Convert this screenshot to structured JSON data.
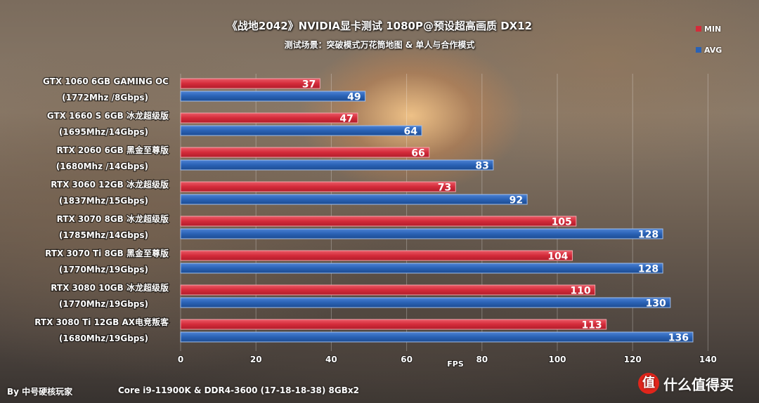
{
  "header": {
    "title": "《战地2042》NVIDIA显卡测试  1080P@预设超高画质  DX12",
    "subtitle": "测试场景：突破模式万花筒地图 & 单人与合作模式"
  },
  "footer": {
    "author": "By 中号硬核玩家",
    "platform": "Core i9-11900K & DDR4-3600  (17-18-18-38) 8GBx2"
  },
  "watermark": {
    "text": "什么值得买",
    "badge": "值"
  },
  "colors": {
    "min": "#d42b3a",
    "avg": "#2a62b5"
  },
  "chart_data": {
    "type": "bar",
    "orientation": "horizontal",
    "title": "《战地2042》NVIDIA显卡测试  1080P@预设超高画质  DX12",
    "subtitle": "测试场景：突破模式万花筒地图 & 单人与合作模式",
    "xlabel": "FPS",
    "ylabel": "",
    "xlim": [
      0,
      140
    ],
    "x_ticks": [
      "0",
      "20",
      "40",
      "60",
      "80",
      "100",
      "120",
      "140"
    ],
    "grid": true,
    "legend_position": "top-right",
    "categories": [
      [
        "GTX 1060 6GB GAMING OC",
        "(1772Mhz /8Gbps)"
      ],
      [
        "GTX 1660 S 6GB 冰龙超级版",
        "(1695Mhz/14Gbps)"
      ],
      [
        "RTX 2060 6GB 黑金至尊版",
        "(1680Mhz /14Gbps)"
      ],
      [
        "RTX 3060 12GB 冰龙超级版",
        "(1837Mhz/15Gbps)"
      ],
      [
        "RTX 3070 8GB 冰龙超级版",
        "(1785Mhz/14Gbps)"
      ],
      [
        "RTX 3070 Ti 8GB 黑金至尊版",
        "(1770Mhz/19Gbps)"
      ],
      [
        "RTX 3080 10GB 冰龙超级版",
        "(1770Mhz/19Gbps)"
      ],
      [
        "RTX 3080 Ti 12GB AX电竞叛客",
        "(1680Mhz/19Gbps)"
      ]
    ],
    "series": [
      {
        "name": "MIN",
        "values": [
          37,
          47,
          66,
          73,
          105,
          104,
          110,
          113
        ]
      },
      {
        "name": "AVG",
        "values": [
          49,
          64,
          83,
          92,
          128,
          128,
          130,
          136
        ]
      }
    ]
  }
}
